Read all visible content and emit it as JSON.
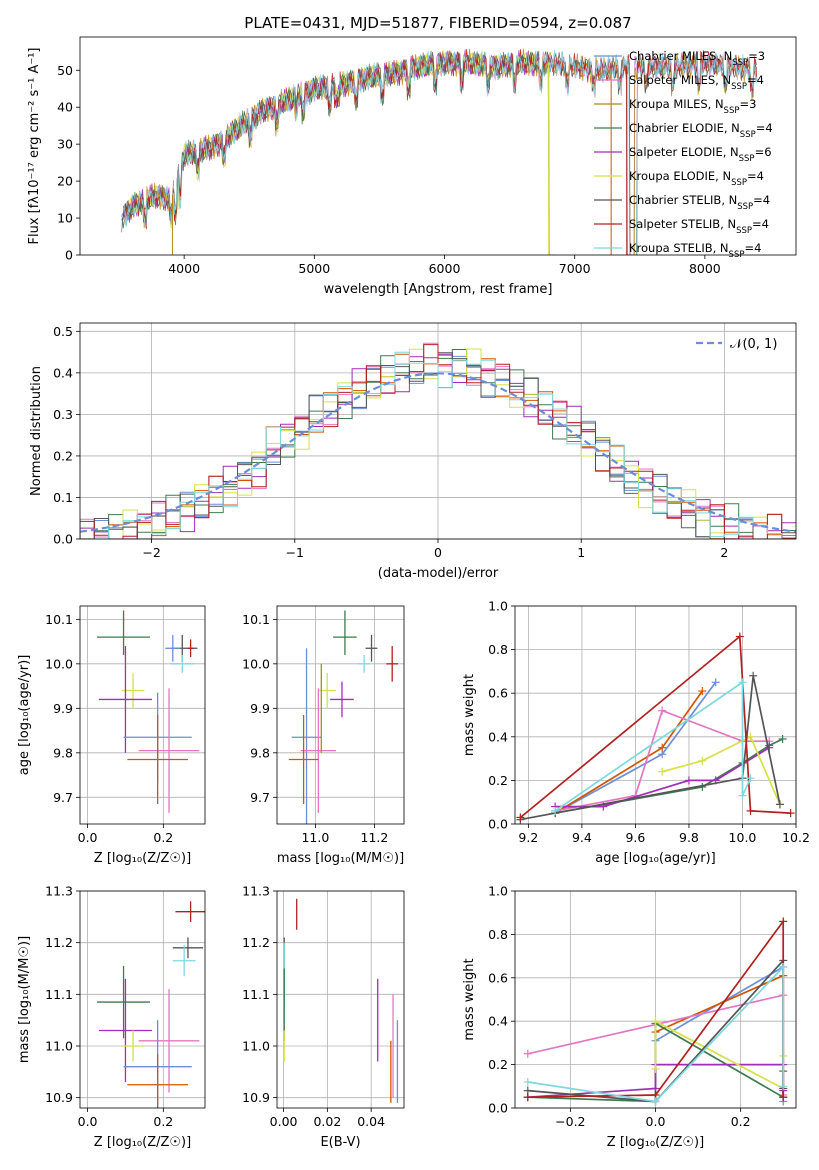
{
  "figure": {
    "title": "PLATE=0431, MJD=51877, FIBERID=0594, z=0.087"
  },
  "chart_data": [
    {
      "id": "spectrum",
      "type": "line",
      "xlabel": "wavelength [Angstrom, rest frame]",
      "ylabel": "Flux [fλ10⁻¹⁷ erg cm⁻² s⁻¹ A⁻¹]",
      "xlim": [
        3200,
        8700
      ],
      "ylim": [
        0,
        59
      ],
      "xticks": [
        4000,
        5000,
        6000,
        7000,
        8000
      ],
      "yticks": [
        0,
        10,
        20,
        30,
        40,
        50
      ],
      "legend_position": "upper-right",
      "anchors": {
        "wave": [
          3520,
          3600,
          3700,
          3800,
          3900,
          4000,
          4100,
          4200,
          4300,
          4400,
          4600,
          4800,
          5000,
          5200,
          5400,
          5600,
          5800,
          6000,
          6200,
          6400,
          6600,
          6800,
          7000,
          7200,
          7400,
          7600,
          7800,
          8000,
          8200,
          8400
        ],
        "flux": [
          10,
          13,
          15,
          16,
          15,
          27,
          28,
          29,
          31,
          34,
          39,
          42,
          45,
          46,
          48,
          49,
          51,
          52,
          52,
          51,
          52,
          52,
          51,
          50,
          51,
          51,
          51,
          52,
          51,
          50
        ]
      },
      "series": [
        {
          "name": "Chabrier MILES, N_SSP=3",
          "color": "#6a8fd8",
          "end": 7400
        },
        {
          "name": "Salpeter MILES, N_SSP=4",
          "color": "#e377c2",
          "end": 7400
        },
        {
          "name": "Kroupa MILES, N_SSP=3",
          "color": "#b5880f",
          "end": 7400
        },
        {
          "name": "Chabrier ELODIE, N_SSP=4",
          "color": "#3e7b4f",
          "end": 6800
        },
        {
          "name": "Salpeter ELODIE, N_SSP=6",
          "color": "#9f2fb5",
          "end": 6800
        },
        {
          "name": "Kroupa ELODIE, N_SSP=4",
          "color": "#d6e04a",
          "end": 6800
        },
        {
          "name": "Chabrier STELIB, N_SSP=4",
          "color": "#555555",
          "end": 7420
        },
        {
          "name": "Salpeter STELIB, N_SSP=4",
          "color": "#b22020",
          "end": 7420
        },
        {
          "name": "Kroupa STELIB, N_SSP=4",
          "color": "#7fd8e0",
          "end": 7420
        }
      ]
    },
    {
      "id": "residuals",
      "type": "histogram",
      "xlabel": "(data-model)/error",
      "ylabel": "Normed distribution",
      "xlim": [
        -2.5,
        2.5
      ],
      "ylim": [
        0,
        0.52
      ],
      "xticks": [
        -2,
        -1,
        0,
        1,
        2
      ],
      "yticks": [
        0.0,
        0.1,
        0.2,
        0.3,
        0.4,
        0.5
      ],
      "legend": "𝒩(0, 1)",
      "legend_position": "upper-right",
      "gaussian_color": "#6a8fd8",
      "series_colors": [
        "#6a8fd8",
        "#e377c2",
        "#d35400",
        "#3e7b4f",
        "#9f2fb5",
        "#d6e04a",
        "#555555",
        "#b22020",
        "#7fd8e0"
      ]
    },
    {
      "id": "age-vs-Z",
      "type": "errorbar",
      "xlabel": "Z [log₁₀(Z/Z☉)]",
      "ylabel": "age  [log₁₀(age/yr)]",
      "xlim": [
        -0.02,
        0.31
      ],
      "ylim": [
        9.64,
        10.13
      ],
      "xticks": [
        0.0,
        0.2
      ],
      "yticks": [
        9.7,
        9.8,
        9.9,
        10.0,
        10.1
      ],
      "points": [
        {
          "x": 0.095,
          "xerr": [
            0.07,
            0.07
          ],
          "y": 10.06,
          "yerr": [
            0.04,
            0.06
          ],
          "color": "#3e7b4f"
        },
        {
          "x": 0.25,
          "xerr": [
            0.03,
            0.04
          ],
          "y": 10.035,
          "yerr": [
            0.03,
            0.03
          ],
          "color": "#555555"
        },
        {
          "x": 0.225,
          "xerr": [
            0.02,
            0.02
          ],
          "y": 10.035,
          "yerr": [
            0.03,
            0.03
          ],
          "color": "#6a8fd8"
        },
        {
          "x": 0.272,
          "xerr": [
            0.008,
            0.008
          ],
          "y": 10.035,
          "yerr": [
            0.02,
            0.02
          ],
          "color": "#b22020"
        },
        {
          "x": 0.25,
          "xerr": [
            0.03,
            0.03
          ],
          "y": 10.0,
          "yerr": [
            0.02,
            0.02
          ],
          "color": "#7fd8e0"
        },
        {
          "x": 0.12,
          "xerr": [
            0.03,
            0.03
          ],
          "y": 9.94,
          "yerr": [
            0.04,
            0.04
          ],
          "color": "#d6e04a"
        },
        {
          "x": 0.1,
          "xerr": [
            0.07,
            0.07
          ],
          "y": 9.92,
          "yerr": [
            0.12,
            0.12
          ],
          "color": "#9f2fb5"
        },
        {
          "x": 0.185,
          "xerr": [
            0.09,
            0.09
          ],
          "y": 9.835,
          "yerr": [
            0.1,
            0.1
          ],
          "color": "#6a8fd8"
        },
        {
          "x": 0.215,
          "xerr": [
            0.08,
            0.08
          ],
          "y": 9.805,
          "yerr": [
            0.14,
            0.14
          ],
          "color": "#e377c2"
        },
        {
          "x": 0.185,
          "xerr": [
            0.08,
            0.08
          ],
          "y": 9.785,
          "yerr": [
            0.1,
            0.1
          ],
          "color": "#d35400"
        }
      ]
    },
    {
      "id": "age-vs-mass",
      "type": "errorbar",
      "xlabel": "mass [log₁₀(M/M☉)]",
      "ylabel": "",
      "xlim": [
        10.87,
        11.3
      ],
      "ylim": [
        9.64,
        10.13
      ],
      "xticks": [
        11.0,
        11.2
      ],
      "yticks": [
        9.7,
        9.8,
        9.9,
        10.0,
        10.1
      ],
      "points": [
        {
          "x": 11.1,
          "xerr": [
            0.04,
            0.04
          ],
          "y": 10.06,
          "yerr": [
            0.04,
            0.06
          ],
          "color": "#3e7b4f"
        },
        {
          "x": 11.19,
          "xerr": [
            0.02,
            0.02
          ],
          "y": 10.035,
          "yerr": [
            0.03,
            0.03
          ],
          "color": "#555555"
        },
        {
          "x": 11.26,
          "xerr": [
            0.02,
            0.02
          ],
          "y": 10.0,
          "yerr": [
            0.04,
            0.04
          ],
          "color": "#b22020"
        },
        {
          "x": 11.165,
          "xerr": [
            0.02,
            0.02
          ],
          "y": 10.0,
          "yerr": [
            0.02,
            0.02
          ],
          "color": "#7fd8e0"
        },
        {
          "x": 11.04,
          "xerr": [
            0.03,
            0.03
          ],
          "y": 9.94,
          "yerr": [
            0.04,
            0.04
          ],
          "color": "#d6e04a"
        },
        {
          "x": 11.09,
          "xerr": [
            0.04,
            0.04
          ],
          "y": 9.92,
          "yerr": [
            0.04,
            0.04
          ],
          "color": "#9f2fb5"
        },
        {
          "x": 10.97,
          "xerr": [
            0.05,
            0.05
          ],
          "y": 9.835,
          "yerr": [
            0.2,
            0.2
          ],
          "color": "#6a8fd8"
        },
        {
          "x": 11.01,
          "xerr": [
            0.06,
            0.06
          ],
          "y": 9.805,
          "yerr": [
            0.14,
            0.14
          ],
          "color": "#e377c2"
        },
        {
          "x": 10.96,
          "xerr": [
            0.05,
            0.05
          ],
          "y": 9.785,
          "yerr": [
            0.1,
            0.1
          ],
          "color": "#d35400"
        },
        {
          "x": 11.02,
          "xerr": [
            0.0,
            0.0
          ],
          "y": 9.9,
          "yerr": [
            0.1,
            0.1
          ],
          "color": "#b5880f"
        }
      ]
    },
    {
      "id": "mass-weight-vs-age",
      "type": "line",
      "xlabel": "age  [log₁₀(age/yr)]",
      "ylabel": "mass weight",
      "xlim": [
        9.15,
        10.2
      ],
      "ylim": [
        0,
        1
      ],
      "xticks": [
        9.2,
        9.4,
        9.6,
        9.8,
        10.0,
        10.2
      ],
      "yticks": [
        0.0,
        0.2,
        0.4,
        0.6,
        0.8,
        1.0
      ],
      "series": [
        {
          "color": "#6a8fd8",
          "x": [
            9.3,
            9.7,
            9.9
          ],
          "y": [
            0.05,
            0.32,
            0.65
          ]
        },
        {
          "color": "#d35400",
          "x": [
            9.3,
            9.7,
            9.85
          ],
          "y": [
            0.05,
            0.35,
            0.61
          ]
        },
        {
          "color": "#e377c2",
          "x": [
            9.3,
            9.6,
            9.7,
            10.0,
            10.1
          ],
          "y": [
            0.06,
            0.13,
            0.52,
            0.38,
            0.38
          ]
        },
        {
          "color": "#3e7b4f",
          "x": [
            9.3,
            9.85,
            10.0,
            10.1,
            10.15
          ],
          "y": [
            0.05,
            0.17,
            0.28,
            0.36,
            0.39
          ]
        },
        {
          "color": "#9f2fb5",
          "x": [
            9.3,
            9.48,
            9.8,
            9.9,
            10.1
          ],
          "y": [
            0.08,
            0.08,
            0.2,
            0.2,
            0.35
          ]
        },
        {
          "color": "#d6e04a",
          "x": [
            9.7,
            9.85,
            10.03,
            10.14
          ],
          "y": [
            0.24,
            0.29,
            0.4,
            0.09
          ]
        },
        {
          "color": "#555555",
          "x": [
            9.17,
            10.0,
            10.04,
            10.14
          ],
          "y": [
            0.02,
            0.21,
            0.68,
            0.09
          ]
        },
        {
          "color": "#b22020",
          "x": [
            9.17,
            9.99,
            10.03,
            10.18
          ],
          "y": [
            0.03,
            0.86,
            0.06,
            0.05
          ]
        },
        {
          "color": "#7fd8e0",
          "x": [
            9.3,
            10.0,
            10.0,
            10.03
          ],
          "y": [
            0.06,
            0.65,
            0.13,
            0.21
          ]
        }
      ]
    },
    {
      "id": "mass-vs-Z",
      "type": "errorbar",
      "xlabel": "Z [log₁₀(Z/Z☉)]",
      "ylabel": "mass [log₁₀(M/M☉)]",
      "xlim": [
        -0.02,
        0.31
      ],
      "ylim": [
        10.88,
        11.3
      ],
      "xticks": [
        0.0,
        0.2
      ],
      "yticks": [
        10.9,
        11.0,
        11.1,
        11.2,
        11.3
      ],
      "points": [
        {
          "x": 0.272,
          "xerr": [
            0.04,
            0.04
          ],
          "y": 11.26,
          "yerr": [
            0.02,
            0.02
          ],
          "color": "#b22020"
        },
        {
          "x": 0.265,
          "xerr": [
            0.04,
            0.04
          ],
          "y": 11.19,
          "yerr": [
            0.02,
            0.02
          ],
          "color": "#555555"
        },
        {
          "x": 0.255,
          "xerr": [
            0.03,
            0.03
          ],
          "y": 11.165,
          "yerr": [
            0.03,
            0.03
          ],
          "color": "#7fd8e0"
        },
        {
          "x": 0.095,
          "xerr": [
            0.07,
            0.07
          ],
          "y": 11.085,
          "yerr": [
            0.07,
            0.07
          ],
          "color": "#3e7b4f"
        },
        {
          "x": 0.1,
          "xerr": [
            0.07,
            0.07
          ],
          "y": 11.03,
          "yerr": [
            0.1,
            0.1
          ],
          "color": "#9f2fb5"
        },
        {
          "x": 0.12,
          "xerr": [
            0.03,
            0.03
          ],
          "y": 11.0,
          "yerr": [
            0.03,
            0.03
          ],
          "color": "#d6e04a"
        },
        {
          "x": 0.215,
          "xerr": [
            0.08,
            0.08
          ],
          "y": 11.01,
          "yerr": [
            0.1,
            0.1
          ],
          "color": "#e377c2"
        },
        {
          "x": 0.185,
          "xerr": [
            0.09,
            0.09
          ],
          "y": 10.96,
          "yerr": [
            0.09,
            0.09
          ],
          "color": "#6a8fd8"
        },
        {
          "x": 0.185,
          "xerr": [
            0.08,
            0.08
          ],
          "y": 10.925,
          "yerr": [
            0.06,
            0.06
          ],
          "color": "#d35400"
        }
      ]
    },
    {
      "id": "mass-vs-EBV",
      "type": "errorbar",
      "xlabel": "E(B-V)",
      "ylabel": "",
      "xlim": [
        -0.003,
        0.055
      ],
      "ylim": [
        10.88,
        11.3
      ],
      "xticks": [
        0.0,
        0.02,
        0.04
      ],
      "yticks": [
        10.9,
        11.0,
        11.1,
        11.2,
        11.3
      ],
      "points": [
        {
          "x": 0.006,
          "xerr": [
            0,
            0
          ],
          "y": 11.255,
          "yerr": [
            0.03,
            0.03
          ],
          "color": "#b22020"
        },
        {
          "x": 0.0003,
          "xerr": [
            0,
            0
          ],
          "y": 11.15,
          "yerr": [
            0.06,
            0.06
          ],
          "color": "#555555"
        },
        {
          "x": 0.0003,
          "xerr": [
            0,
            0
          ],
          "y": 11.14,
          "yerr": [
            0.06,
            0.06
          ],
          "color": "#7fd8e0"
        },
        {
          "x": 0.0003,
          "xerr": [
            0,
            0
          ],
          "y": 11.08,
          "yerr": [
            0.07,
            0.07
          ],
          "color": "#3e7b4f"
        },
        {
          "x": 0.0003,
          "xerr": [
            0,
            0
          ],
          "y": 11.0,
          "yerr": [
            0.03,
            0.03
          ],
          "color": "#d6e04a"
        },
        {
          "x": 0.043,
          "xerr": [
            0,
            0
          ],
          "y": 11.05,
          "yerr": [
            0.08,
            0.08
          ],
          "color": "#9f2fb5"
        },
        {
          "x": 0.05,
          "xerr": [
            0,
            0
          ],
          "y": 11.0,
          "yerr": [
            0.1,
            0.1
          ],
          "color": "#e377c2"
        },
        {
          "x": 0.052,
          "xerr": [
            0,
            0
          ],
          "y": 10.97,
          "yerr": [
            0.08,
            0.08
          ],
          "color": "#6a8fd8"
        },
        {
          "x": 0.049,
          "xerr": [
            0,
            0
          ],
          "y": 10.95,
          "yerr": [
            0.06,
            0.06
          ],
          "color": "#d35400"
        }
      ]
    },
    {
      "id": "mass-weight-vs-Z",
      "type": "line",
      "xlabel": "Z [log₁₀(Z/Z☉)]",
      "ylabel": "mass weight",
      "xlim": [
        -0.33,
        0.33
      ],
      "ylim": [
        0,
        1
      ],
      "xticks": [
        -0.2,
        0.0,
        0.2
      ],
      "yticks": [
        0.0,
        0.2,
        0.4,
        0.6,
        0.8,
        1.0
      ],
      "series": [
        {
          "color": "#6a8fd8",
          "x": [
            0.0,
            0.3,
            0.3
          ],
          "y": [
            0.31,
            0.65,
            0.03
          ]
        },
        {
          "color": "#d35400",
          "x": [
            0.0,
            0.3,
            0.3
          ],
          "y": [
            0.35,
            0.61,
            0.05
          ]
        },
        {
          "color": "#e377c2",
          "x": [
            -0.3,
            0.3,
            0.3
          ],
          "y": [
            0.25,
            0.52,
            0.06
          ]
        },
        {
          "color": "#3e7b4f",
          "x": [
            -0.3,
            0.0,
            0.0,
            0.3,
            0.3
          ],
          "y": [
            0.05,
            0.03,
            0.39,
            0.05,
            0.17
          ]
        },
        {
          "color": "#9f2fb5",
          "x": [
            -0.3,
            0.0,
            0.0,
            0.3,
            0.3
          ],
          "y": [
            0.05,
            0.09,
            0.2,
            0.2,
            0.08
          ]
        },
        {
          "color": "#d6e04a",
          "x": [
            0.0,
            0.0,
            0.3,
            0.3
          ],
          "y": [
            0.18,
            0.4,
            0.09,
            0.24
          ]
        },
        {
          "color": "#555555",
          "x": [
            -0.3,
            0.0,
            0.3,
            0.3
          ],
          "y": [
            0.08,
            0.03,
            0.68,
            0.09
          ]
        },
        {
          "color": "#b22020",
          "x": [
            -0.3,
            0.0,
            0.3,
            0.3
          ],
          "y": [
            0.05,
            0.06,
            0.86,
            0.05
          ]
        },
        {
          "color": "#7fd8e0",
          "x": [
            -0.3,
            0.0,
            0.3,
            0.3
          ],
          "y": [
            0.12,
            0.03,
            0.65,
            0.1
          ]
        }
      ]
    }
  ]
}
